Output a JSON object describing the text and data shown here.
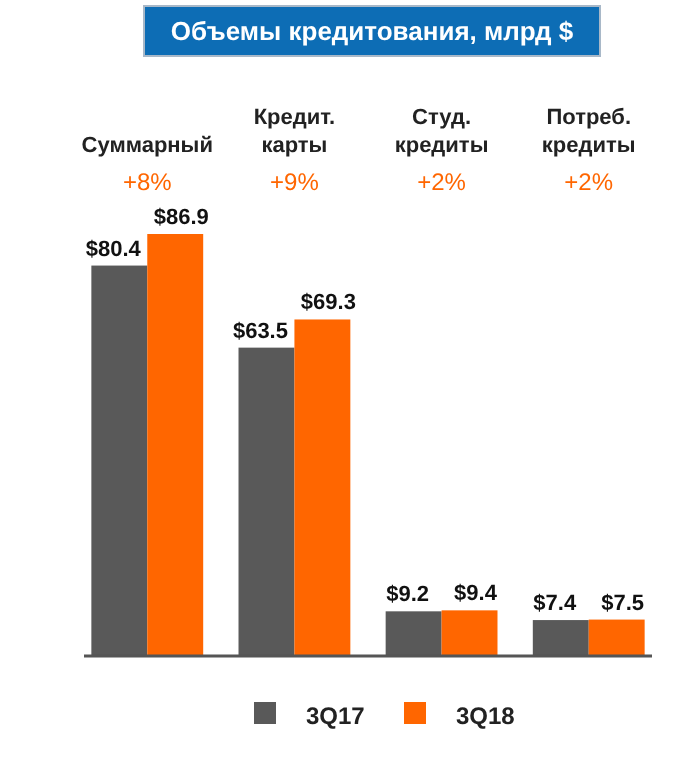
{
  "chart_data": {
    "type": "bar",
    "title": "Объемы кредитования, млрд $",
    "categories": [
      "Суммарный",
      "Кредит.\nкарты",
      "Студ.\nкредиты",
      "Потреб.\nкредиты"
    ],
    "series": [
      {
        "name": "3Q17",
        "color": "#595959",
        "values": [
          80.4,
          63.5,
          9.2,
          7.4
        ],
        "value_labels": [
          "$80.4",
          "$63.5",
          "$9.2",
          "$7.4"
        ]
      },
      {
        "name": "3Q18",
        "color": "#ff6600",
        "values": [
          86.9,
          69.3,
          9.4,
          7.5
        ],
        "value_labels": [
          "$86.9",
          "$69.3",
          "$9.4",
          "$7.5"
        ]
      }
    ],
    "annotations": [
      "+8%",
      "+9%",
      "+2%",
      "+2%"
    ],
    "legend": "bottom"
  }
}
